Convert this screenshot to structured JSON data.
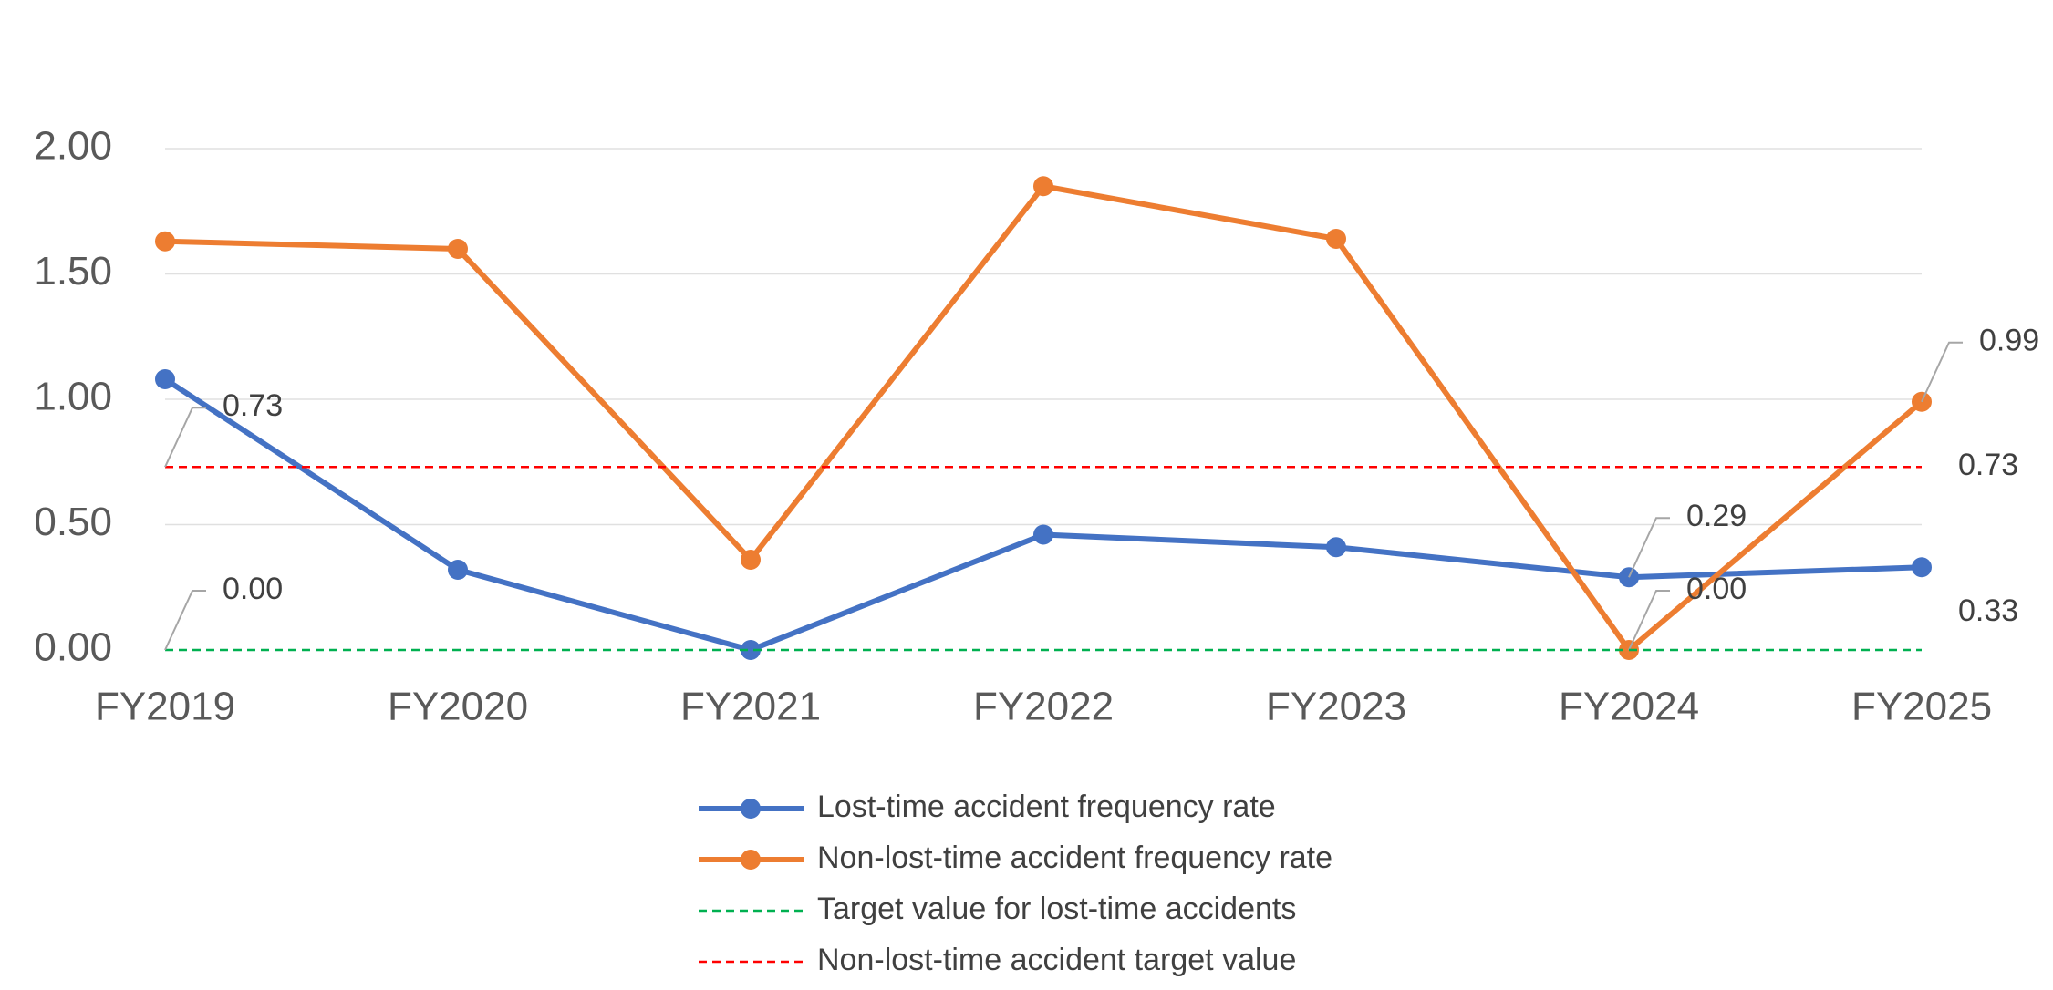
{
  "chart_data": {
    "type": "line",
    "categories": [
      "FY2019",
      "FY2020",
      "FY2021",
      "FY2022",
      "FY2023",
      "FY2024",
      "FY2025"
    ],
    "series": [
      {
        "name": "Lost-time accident frequency rate",
        "color": "#4472c4",
        "style": "solid",
        "markers": true,
        "values": [
          1.08,
          0.32,
          0.0,
          0.46,
          0.41,
          0.29,
          0.33
        ],
        "value_labels": [
          null,
          null,
          null,
          null,
          null,
          "0.29",
          "0.33"
        ]
      },
      {
        "name": "Non-lost-time accident frequency rate",
        "color": "#ed7d31",
        "style": "solid",
        "markers": true,
        "values": [
          1.63,
          1.6,
          0.36,
          1.85,
          1.64,
          0.0,
          0.99
        ],
        "value_labels": [
          null,
          null,
          null,
          null,
          null,
          "0.00",
          "0.99"
        ]
      },
      {
        "name": "Target value for lost-time accidents",
        "color": "#00b050",
        "style": "dashed",
        "markers": false,
        "values": [
          0,
          0,
          0,
          0,
          0,
          0,
          0
        ],
        "value_labels": [
          "0.00",
          null,
          null,
          null,
          null,
          null,
          null
        ]
      },
      {
        "name": "Non-lost-time accident target value",
        "color": "#ff0000",
        "style": "dashed",
        "markers": false,
        "values": [
          0.73,
          0.73,
          0.73,
          0.73,
          0.73,
          0.73,
          0.73
        ],
        "value_labels": [
          "0.73",
          null,
          null,
          null,
          null,
          null,
          "0.73"
        ]
      }
    ],
    "ylim": [
      0,
      2
    ],
    "yticks": [
      {
        "value": 0,
        "label": "0.00"
      },
      {
        "value": 0.5,
        "label": "0.50"
      },
      {
        "value": 1,
        "label": "1.00"
      },
      {
        "value": 1.5,
        "label": "1.50"
      },
      {
        "value": 2,
        "label": "2.00"
      }
    ],
    "grid": true,
    "legend": "bottom"
  }
}
